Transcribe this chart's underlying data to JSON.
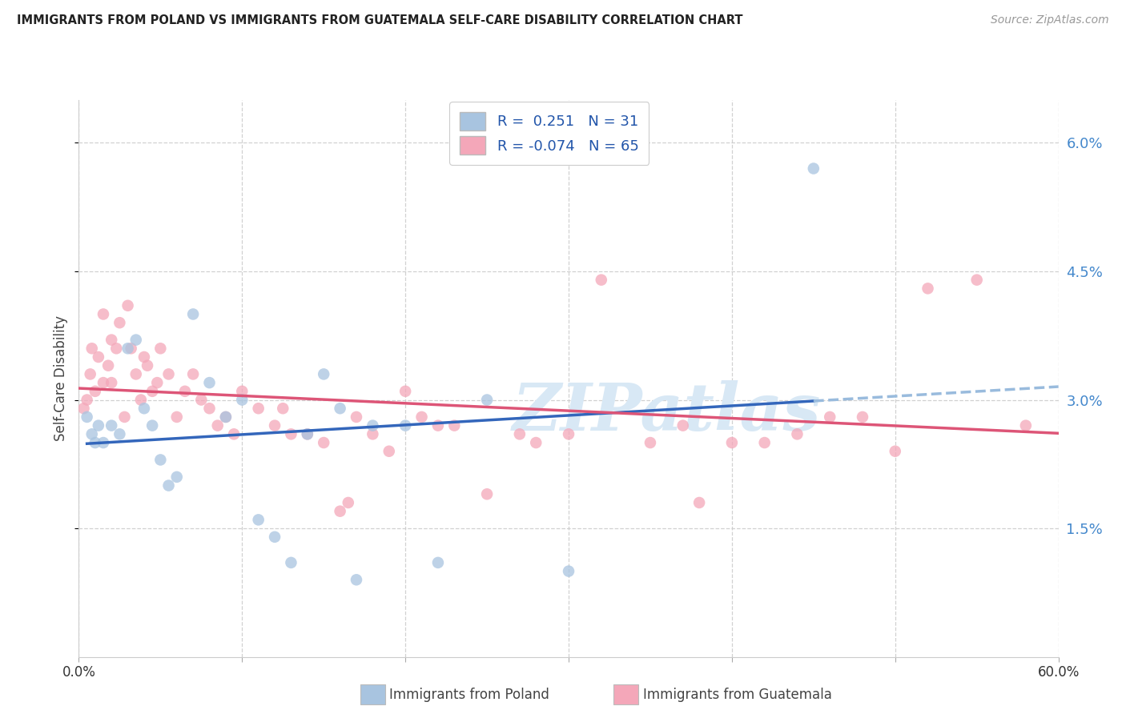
{
  "title": "IMMIGRANTS FROM POLAND VS IMMIGRANTS FROM GUATEMALA SELF-CARE DISABILITY CORRELATION CHART",
  "source": "Source: ZipAtlas.com",
  "ylabel": "Self-Care Disability",
  "ytick_values": [
    1.5,
    3.0,
    4.5,
    6.0
  ],
  "ytick_labels": [
    "1.5%",
    "3.0%",
    "4.5%",
    "6.0%"
  ],
  "xlim": [
    0.0,
    60.0
  ],
  "ylim": [
    0.0,
    6.5
  ],
  "color_poland": "#a8c4e0",
  "color_guatemala": "#f4a7b9",
  "color_line_poland": "#3366bb",
  "color_line_poland_dash": "#99bbdd",
  "color_line_guatemala": "#dd5577",
  "watermark_text": "ZIPatlas",
  "watermark_color": "#d8e8f5",
  "R_poland": 0.251,
  "N_poland": 31,
  "R_guatemala": -0.074,
  "N_guatemala": 65,
  "poland_x": [
    0.5,
    0.8,
    1.0,
    1.2,
    1.5,
    2.0,
    2.5,
    3.0,
    3.5,
    4.0,
    4.5,
    5.0,
    5.5,
    6.0,
    7.0,
    8.0,
    9.0,
    10.0,
    11.0,
    12.0,
    13.0,
    14.0,
    15.0,
    16.0,
    17.0,
    18.0,
    20.0,
    22.0,
    25.0,
    30.0,
    45.0
  ],
  "poland_y": [
    2.8,
    2.6,
    2.5,
    2.7,
    2.5,
    2.7,
    2.6,
    3.6,
    3.7,
    2.9,
    2.7,
    2.3,
    2.0,
    2.1,
    4.0,
    3.2,
    2.8,
    3.0,
    1.6,
    1.4,
    1.1,
    2.6,
    3.3,
    2.9,
    0.9,
    2.7,
    2.7,
    1.1,
    3.0,
    1.0,
    5.7
  ],
  "guatemala_x": [
    0.3,
    0.5,
    0.7,
    0.8,
    1.0,
    1.2,
    1.5,
    1.5,
    1.8,
    2.0,
    2.0,
    2.3,
    2.5,
    2.8,
    3.0,
    3.2,
    3.5,
    3.8,
    4.0,
    4.2,
    4.5,
    4.8,
    5.0,
    5.5,
    6.0,
    6.5,
    7.0,
    7.5,
    8.0,
    8.5,
    9.0,
    9.5,
    10.0,
    11.0,
    12.0,
    12.5,
    13.0,
    14.0,
    15.0,
    16.0,
    16.5,
    17.0,
    18.0,
    19.0,
    20.0,
    21.0,
    22.0,
    23.0,
    25.0,
    27.0,
    28.0,
    30.0,
    32.0,
    35.0,
    37.0,
    38.0,
    40.0,
    42.0,
    44.0,
    46.0,
    48.0,
    50.0,
    52.0,
    55.0,
    58.0
  ],
  "guatemala_y": [
    2.9,
    3.0,
    3.3,
    3.6,
    3.1,
    3.5,
    3.2,
    4.0,
    3.4,
    3.7,
    3.2,
    3.6,
    3.9,
    2.8,
    4.1,
    3.6,
    3.3,
    3.0,
    3.5,
    3.4,
    3.1,
    3.2,
    3.6,
    3.3,
    2.8,
    3.1,
    3.3,
    3.0,
    2.9,
    2.7,
    2.8,
    2.6,
    3.1,
    2.9,
    2.7,
    2.9,
    2.6,
    2.6,
    2.5,
    1.7,
    1.8,
    2.8,
    2.6,
    2.4,
    3.1,
    2.8,
    2.7,
    2.7,
    1.9,
    2.6,
    2.5,
    2.6,
    4.4,
    2.5,
    2.7,
    1.8,
    2.5,
    2.5,
    2.6,
    2.8,
    2.8,
    2.4,
    4.3,
    4.4,
    2.7
  ]
}
